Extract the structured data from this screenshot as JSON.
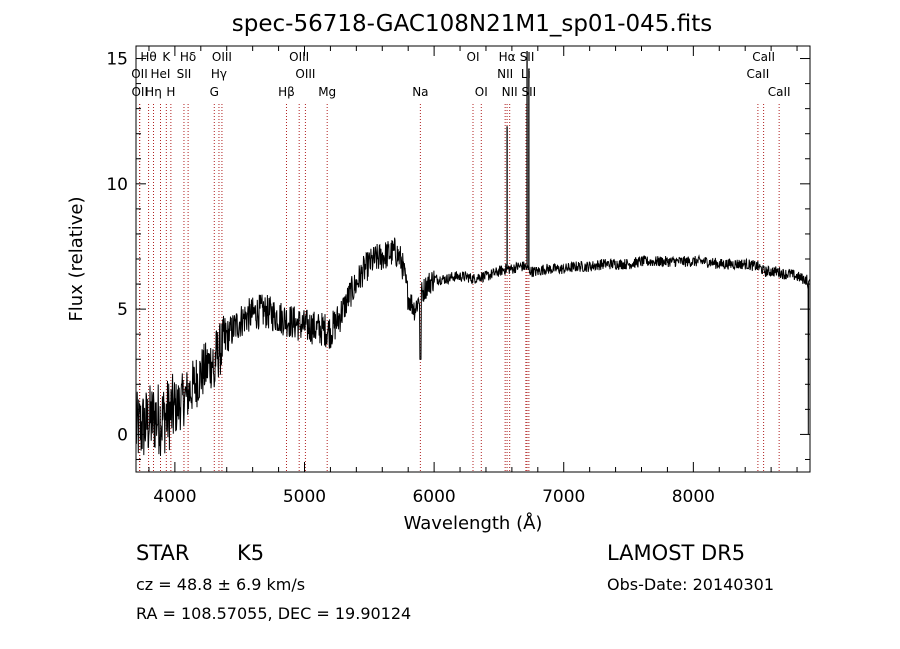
{
  "chart_data": {
    "type": "line",
    "title": "spec-56718-GAC108N21M1_sp01-045.fits",
    "xlabel": "Wavelength (Å)",
    "ylabel": "Flux (relative)",
    "xlim": [
      3700,
      8900
    ],
    "ylim": [
      -1.5,
      15.5
    ],
    "xticks": [
      4000,
      5000,
      6000,
      7000,
      8000
    ],
    "yticks": [
      0,
      5,
      10,
      15
    ],
    "grid": false,
    "series": [
      {
        "x": [
          3700,
          3750,
          3800,
          3850,
          3900,
          3950,
          4000,
          4050,
          4100,
          4150,
          4200,
          4250,
          4300,
          4350,
          4400,
          4450,
          4500,
          4550,
          4600,
          4650,
          4700,
          4750,
          4800,
          4850,
          4900,
          4950,
          5000,
          5050,
          5100,
          5150,
          5200,
          5250,
          5300,
          5350,
          5400,
          5450,
          5500,
          5550,
          5600,
          5650,
          5700,
          5750,
          5800,
          5850,
          5900,
          5950,
          6000,
          6050,
          6100,
          6150,
          6200,
          6250,
          6300,
          6350,
          6400,
          6450,
          6500,
          6550,
          6600,
          6650,
          6700,
          6750,
          6800,
          6850,
          6900,
          6950,
          7000,
          7100,
          7200,
          7300,
          7400,
          7500,
          7600,
          7700,
          7800,
          7900,
          8000,
          8100,
          8200,
          8300,
          8400,
          8500,
          8550,
          8600,
          8650,
          8700,
          8750,
          8800,
          8850,
          8880,
          8900
        ],
        "y": [
          0.2,
          0.3,
          0.5,
          0.7,
          0.6,
          0.8,
          1.0,
          1.3,
          1.6,
          2.0,
          2.4,
          2.7,
          3.0,
          3.4,
          3.9,
          4.2,
          4.5,
          4.7,
          4.8,
          4.9,
          4.9,
          4.8,
          4.7,
          4.6,
          4.5,
          4.4,
          4.3,
          4.3,
          4.2,
          4.2,
          4.1,
          4.5,
          5.0,
          5.6,
          6.0,
          6.5,
          6.8,
          7.0,
          7.1,
          7.2,
          7.3,
          6.9,
          5.5,
          5.0,
          5.6,
          6.0,
          6.2,
          6.2,
          6.2,
          6.3,
          6.3,
          6.3,
          6.2,
          6.3,
          6.3,
          6.4,
          6.5,
          6.6,
          6.6,
          6.7,
          6.7,
          6.5,
          6.5,
          6.6,
          6.6,
          6.6,
          6.6,
          6.7,
          6.7,
          6.8,
          6.8,
          6.8,
          6.9,
          6.9,
          6.9,
          6.9,
          6.9,
          6.9,
          6.8,
          6.8,
          6.8,
          6.7,
          6.5,
          6.5,
          6.5,
          6.4,
          6.4,
          6.3,
          6.2,
          6.2,
          6.2
        ]
      }
    ],
    "emission_spikes": [
      {
        "x": 6563,
        "y": 12.3
      },
      {
        "x": 6717,
        "y": 15.3
      },
      {
        "x": 6731,
        "y": 14.6
      }
    ],
    "lines": [
      {
        "label": "Hθ",
        "x": 3797,
        "row": 0
      },
      {
        "label": "K",
        "x": 3934,
        "row": 0
      },
      {
        "label": "Hδ",
        "x": 4102,
        "row": 0
      },
      {
        "label": "OIII",
        "x": 4363,
        "row": 0
      },
      {
        "label": "OIII",
        "x": 4959,
        "row": 0
      },
      {
        "label": "OI",
        "x": 6300,
        "row": 0
      },
      {
        "label": "Hα",
        "x": 6563,
        "row": 0
      },
      {
        "label": "SII",
        "x": 6717,
        "row": 0
      },
      {
        "label": "CaII",
        "x": 8542,
        "row": 0
      },
      {
        "label": "OII",
        "x": 3727,
        "row": 1
      },
      {
        "label": "HeI",
        "x": 3889,
        "row": 1
      },
      {
        "label": "SII",
        "x": 4070,
        "row": 1
      },
      {
        "label": "Hγ",
        "x": 4340,
        "row": 1
      },
      {
        "label": "OIII",
        "x": 5007,
        "row": 1
      },
      {
        "label": "NII",
        "x": 6548,
        "row": 1
      },
      {
        "label": "Li",
        "x": 6708,
        "row": 1
      },
      {
        "label": "CaII",
        "x": 8498,
        "row": 1
      },
      {
        "label": "OII",
        "x": 3729,
        "row": 2
      },
      {
        "label": "Hη",
        "x": 3835,
        "row": 2
      },
      {
        "label": "H",
        "x": 3969,
        "row": 2
      },
      {
        "label": "G",
        "x": 4304,
        "row": 2
      },
      {
        "label": "Hβ",
        "x": 4861,
        "row": 2
      },
      {
        "label": "Mg",
        "x": 5175,
        "row": 2
      },
      {
        "label": "Na",
        "x": 5894,
        "row": 2
      },
      {
        "label": "OI",
        "x": 6364,
        "row": 2
      },
      {
        "label": "NII",
        "x": 6583,
        "row": 2
      },
      {
        "label": "SII",
        "x": 6731,
        "row": 2
      },
      {
        "label": "CaII",
        "x": 8662,
        "row": 2
      }
    ]
  },
  "info": {
    "class": "STAR",
    "subclass": "K5",
    "survey": "LAMOST DR5",
    "cz": "cz = 48.8 ± 6.9 km/s",
    "obs_date": "Obs-Date: 20140301",
    "coords": "RA = 108.57055, DEC =  19.90124"
  }
}
